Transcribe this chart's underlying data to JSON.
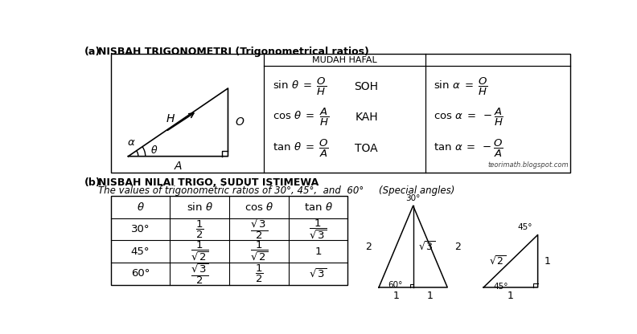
{
  "title_a_bold": "(a)",
  "title_a_text": "  NISBAH TRIGONOMETRI (Trigonometrical ratios)",
  "title_b_bold": "(b)",
  "title_b_text1": "  NISBAH NILAI TRIGO, SUDUT ISTIMEWA",
  "title_b_text2": "    The values of trigonometric ratios of 30°, 45°,  and  60°     (Special angles)",
  "watermark": "teorimath.blogspot.com",
  "mudah_hafal": "MUDAH HAFAL",
  "soh": "SOH",
  "kah": "KAH",
  "toa": "TOA"
}
